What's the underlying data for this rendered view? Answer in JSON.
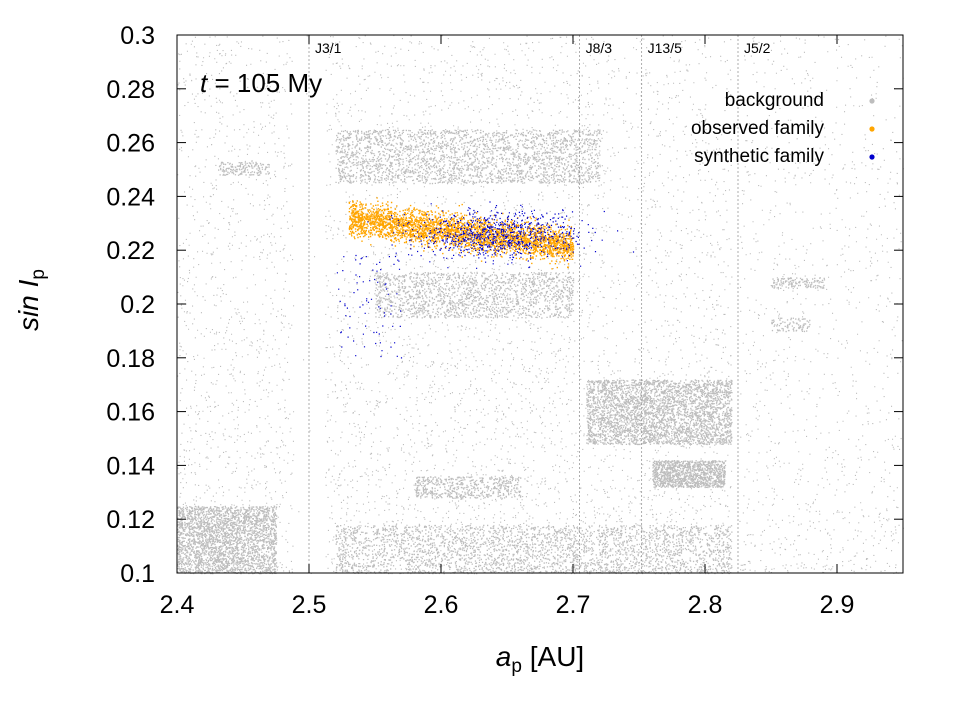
{
  "chart_data": {
    "type": "scatter",
    "xlim": [
      2.4,
      2.95
    ],
    "ylim": [
      0.1,
      0.3
    ],
    "x_ticks": [
      "2.4",
      "2.5",
      "2.6",
      "2.7",
      "2.8",
      "2.9"
    ],
    "y_ticks": [
      "0.1",
      "0.12",
      "0.14",
      "0.16",
      "0.18",
      "0.2",
      "0.22",
      "0.24",
      "0.26",
      "0.28",
      "0.3"
    ],
    "xlabel": {
      "var": "a",
      "sub": "p",
      "unit": " [AU]"
    },
    "ylabel": {
      "var": "sin I",
      "sub": "p"
    },
    "annotation": {
      "var": "t",
      "text": " = 105 My"
    },
    "resonances": [
      {
        "label": "J3/1",
        "a": 2.5
      },
      {
        "label": "J8/3",
        "a": 2.705
      },
      {
        "label": "J13/5",
        "a": 2.752
      },
      {
        "label": "J5/2",
        "a": 2.825
      }
    ],
    "series": [
      {
        "name": "background",
        "color": "#bdbdbd",
        "point_count_approx": 60000,
        "clusters": [
          {
            "a_range": [
              2.4,
              2.95
            ],
            "sinI_range": [
              0.1,
              0.3
            ],
            "density": "sparse"
          },
          {
            "a_range": [
              2.4,
              2.47
            ],
            "sinI_range": [
              0.1,
              0.12
            ],
            "density": "dense"
          },
          {
            "a_range": [
              2.52,
              2.7
            ],
            "sinI_range": [
              0.245,
              0.265
            ],
            "density": "dense"
          },
          {
            "a_range": [
              2.56,
              2.7
            ],
            "sinI_range": [
              0.195,
              0.21
            ],
            "density": "dense"
          },
          {
            "a_range": [
              2.71,
              2.82
            ],
            "sinI_range": [
              0.15,
              0.17
            ],
            "density": "dense"
          },
          {
            "a_range": [
              2.76,
              2.81
            ],
            "sinI_range": [
              0.13,
              0.14
            ],
            "density": "dense"
          },
          {
            "a_range": [
              2.52,
              2.82
            ],
            "sinI_range": [
              0.1,
              0.115
            ],
            "density": "dense"
          }
        ]
      },
      {
        "name": "observed family",
        "color": "#ffa500",
        "point_count_approx": 3000,
        "a_range": [
          2.53,
          2.7
        ],
        "sinI_range": [
          0.21,
          0.24
        ],
        "trend": "sin I decreases from about 0.232 at a=2.53 to about 0.222 at a=2.7"
      },
      {
        "name": "synthetic family",
        "color": "#0000cc",
        "point_count_approx": 5000,
        "a_range": [
          2.52,
          2.8
        ],
        "sinI_range": [
          0.18,
          0.245
        ],
        "center": [
          2.645,
          0.226
        ]
      }
    ],
    "legend_placement": "top-right",
    "grid": false
  }
}
